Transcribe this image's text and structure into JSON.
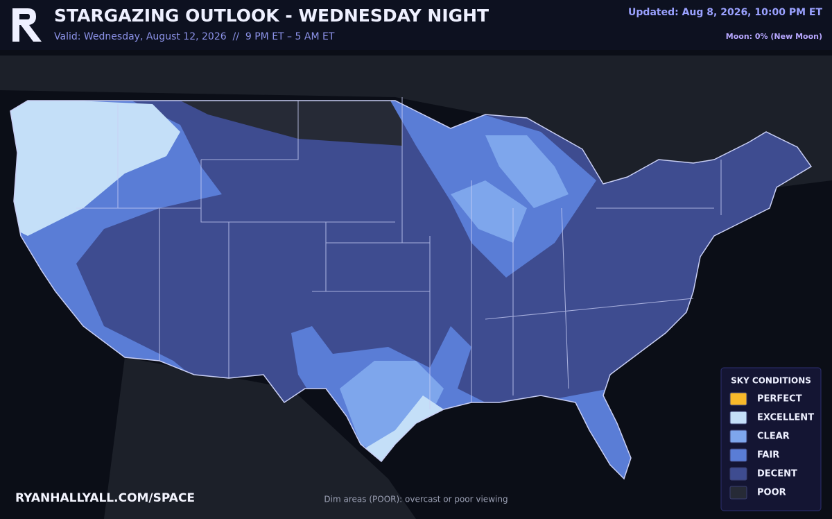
{
  "header": {
    "title": "STARGAZING OUTLOOK - WEDNESDAY NIGHT",
    "valid": "Valid: Wednesday, August 12, 2026  //  9 PM ET – 5 AM ET",
    "updated": "Updated: Aug 8, 2026, 10:00 PM ET",
    "moon": "Moon: 0% (New Moon)"
  },
  "legend": {
    "title": "SKY CONDITIONS",
    "items": [
      {
        "label": "PERFECT",
        "color": "#f8b92a"
      },
      {
        "label": "EXCELLENT",
        "color": "#c4dff8"
      },
      {
        "label": "CLEAR",
        "color": "#7ea6ec"
      },
      {
        "label": "FAIR",
        "color": "#5a7dd6"
      },
      {
        "label": "DECENT",
        "color": "#3e4c90"
      },
      {
        "label": "POOR",
        "color": "#262a36"
      }
    ]
  },
  "footer": {
    "website": "RYANHALLYALL.COM/SPACE",
    "note": "Dim areas (POOR): overcast or poor viewing"
  }
}
